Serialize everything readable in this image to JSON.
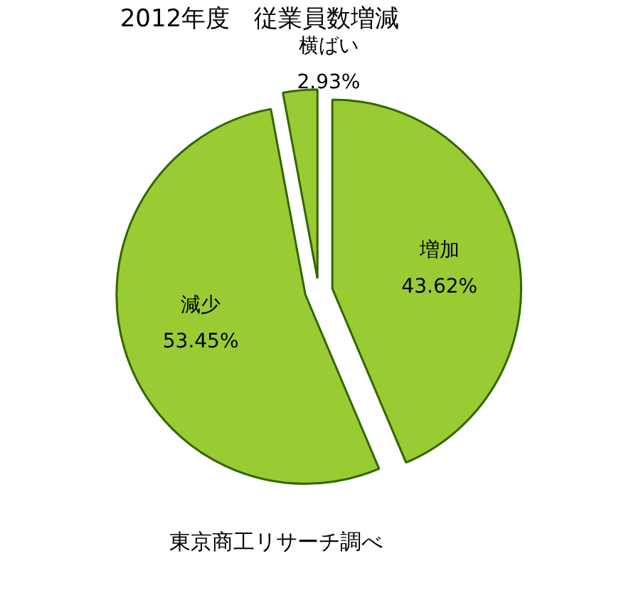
{
  "chart_data": {
    "type": "pie",
    "title": "2012年度　従業員数増減",
    "categories": [
      "増加",
      "減少",
      "横ばい"
    ],
    "values": [
      43.62,
      53.45,
      2.93
    ],
    "value_labels": [
      "43.62%",
      "53.45%",
      "2.93%"
    ],
    "colors": [
      "#99cc33",
      "#99cc33",
      "#99cc33"
    ],
    "annotations": [
      "東京商工リサーチ調べ"
    ]
  }
}
